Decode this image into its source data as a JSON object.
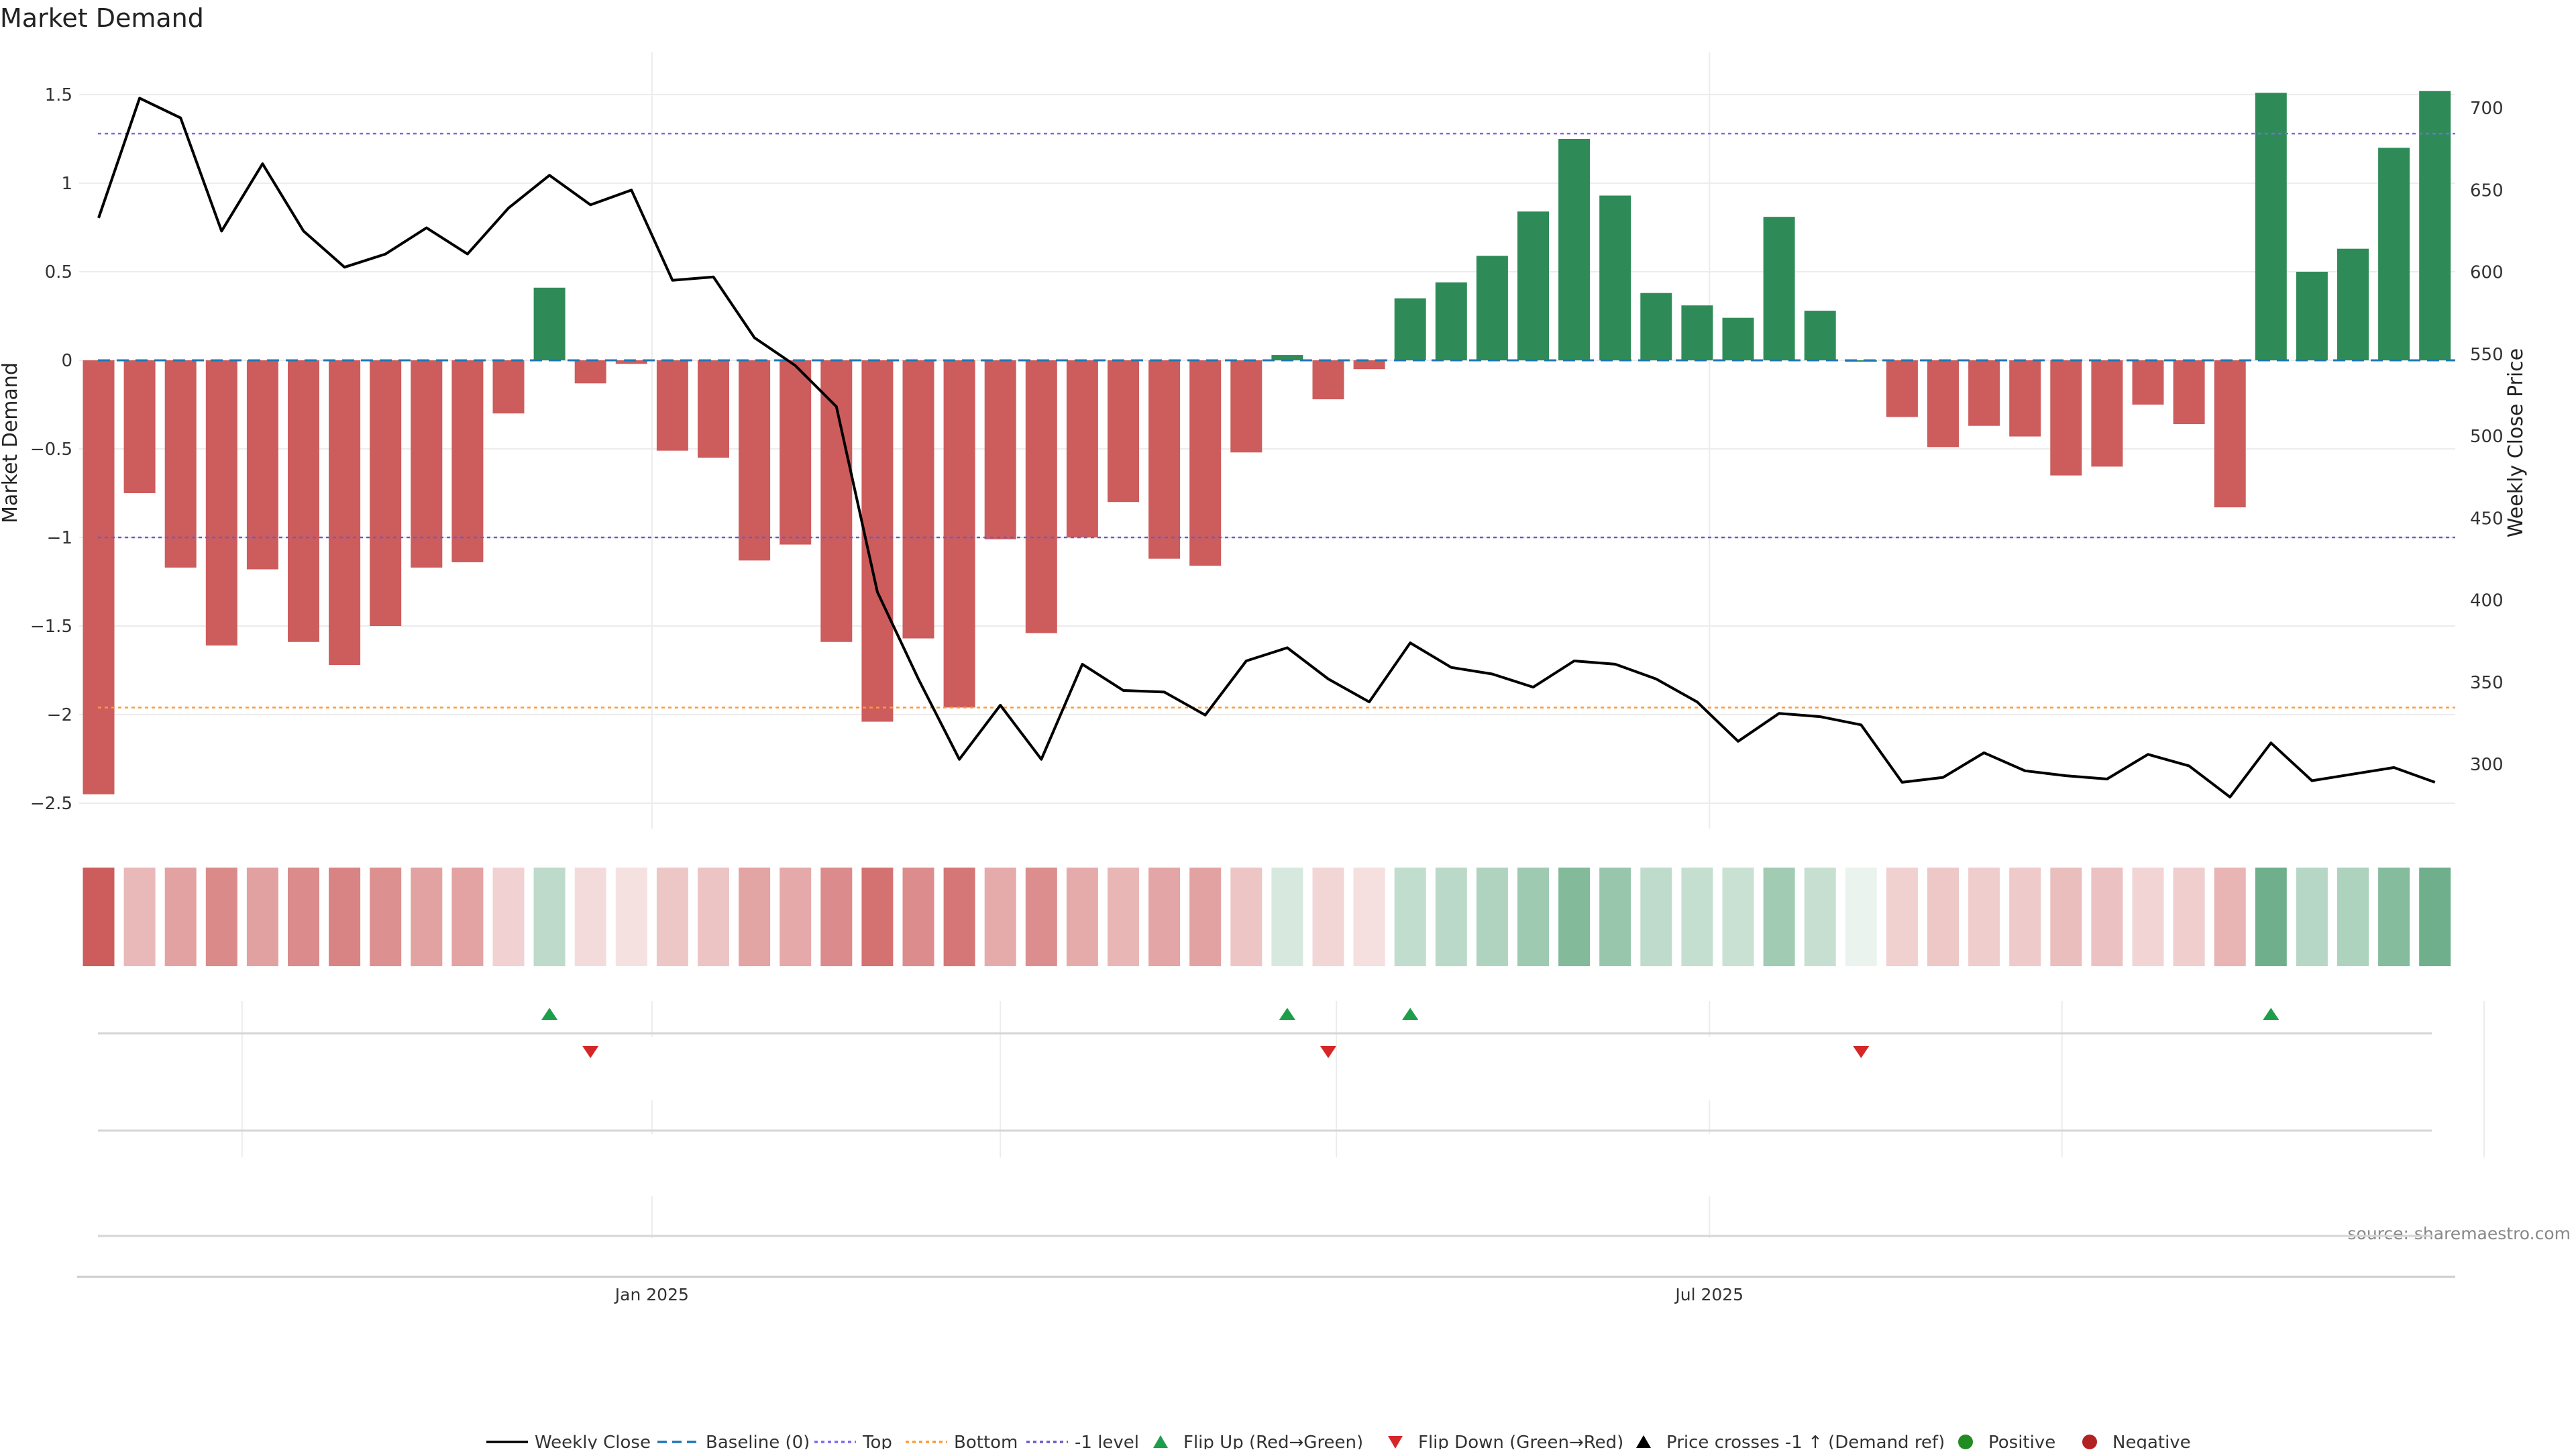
{
  "chart_data": {
    "type": "bar",
    "title": "Market Demand",
    "ylabel": "Market Demand",
    "y2label": "Weekly Close Price",
    "ylim": [
      -2.55,
      1.65
    ],
    "y2lim": [
      269,
      714
    ],
    "yticks": [
      1.5,
      1,
      0.5,
      0,
      -0.5,
      -1,
      -1.5,
      -2,
      -2.5
    ],
    "ytick_labels": [
      "1.5",
      "1",
      "0.5",
      "0",
      "−0.5",
      "−1",
      "−1.5",
      "−2",
      "−2.5"
    ],
    "y2ticks": [
      700,
      650,
      600,
      550,
      500,
      450,
      400,
      350,
      300
    ],
    "y2tick_labels": [
      "700",
      "650",
      "600",
      "550",
      "500",
      "450",
      "400",
      "350",
      "300"
    ],
    "xtick_labels": [
      "Jan 2025",
      "Jul 2025"
    ],
    "xtick_index": [
      13.5,
      39.3
    ],
    "demand": [
      -2.45,
      -0.75,
      -1.17,
      -1.61,
      -1.18,
      -1.59,
      -1.72,
      -1.5,
      -1.17,
      -1.14,
      -0.3,
      0.41,
      -0.13,
      -0.02,
      -0.51,
      -0.55,
      -1.13,
      -1.04,
      -1.59,
      -2.04,
      -1.57,
      -1.96,
      -1.01,
      -1.54,
      -1.0,
      -0.8,
      -1.12,
      -1.16,
      -0.52,
      0.03,
      -0.22,
      -0.05,
      0.35,
      0.44,
      0.59,
      0.84,
      1.25,
      0.93,
      0.38,
      0.31,
      0.24,
      0.81,
      0.28,
      0.0,
      -0.32,
      -0.49,
      -0.37,
      -0.43,
      -0.65,
      -0.6,
      -0.25,
      -0.36,
      -0.83,
      1.51,
      0.5,
      0.63,
      1.2,
      1.52
    ],
    "close": [
      633,
      706,
      694,
      625,
      666,
      625,
      603,
      611,
      627,
      611,
      639,
      659,
      641,
      650,
      595,
      597,
      560,
      543,
      518,
      405,
      352,
      303,
      336,
      303,
      361,
      345,
      344,
      330,
      363,
      371,
      352,
      338,
      374,
      359,
      355,
      347,
      363,
      361,
      352,
      338,
      314,
      331,
      329,
      324,
      289,
      292,
      307,
      296,
      293,
      291,
      306,
      299,
      280,
      313,
      290,
      294,
      298,
      289
    ],
    "levels": {
      "top": 1.28,
      "bottom": -1.96,
      "minus_one": -1.0,
      "baseline": 0
    },
    "flip_up": [
      11,
      29,
      32,
      53
    ],
    "flip_down": [
      12,
      30,
      43
    ],
    "legend_position": "bottom-center",
    "legend": [
      "Weekly Close",
      "Baseline (0)",
      "Top",
      "Bottom",
      "-1 level",
      "Flip Up (Red→Green)",
      "Flip Down (Green→Red)",
      "Price crosses -1 ↑ (Demand ref)",
      "Positive",
      "Negative"
    ],
    "source": "source: sharemaestro.com",
    "colors": {
      "positive": "#2e8b57",
      "negative": "#cd5c5c",
      "price": "#000000",
      "baseline": "#1f77b4",
      "top": "#7b68ee",
      "bottom": "#ff9933",
      "minus_one": "#6a5acd",
      "flip_up": "#1e9e4a",
      "flip_down": "#d62728",
      "pos_dot": "#228b22",
      "neg_dot": "#b22222"
    }
  }
}
